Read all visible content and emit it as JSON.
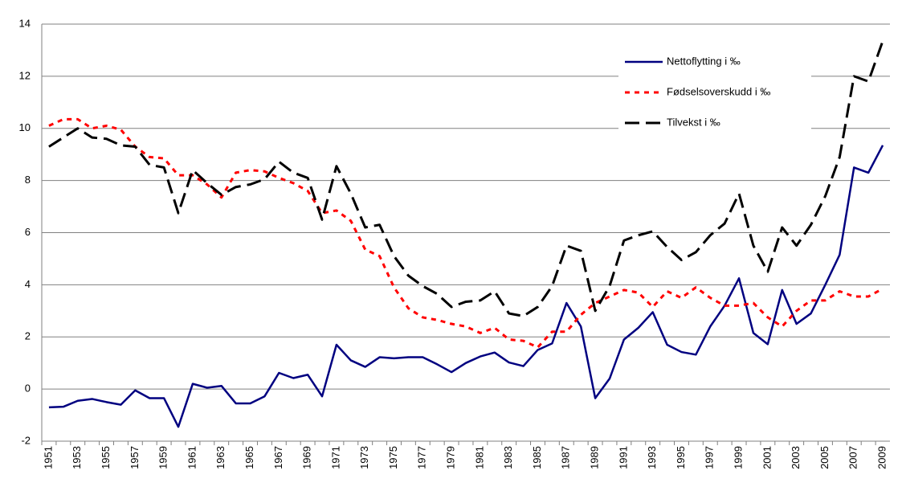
{
  "chart_data": {
    "type": "line",
    "categories": [
      "1951",
      null,
      "1953",
      null,
      "1955",
      null,
      "1957",
      null,
      "1959",
      null,
      "1961",
      null,
      "1963",
      null,
      "1965",
      null,
      "1967",
      null,
      "1969",
      null,
      "1971",
      null,
      "1973",
      null,
      "1975",
      null,
      "1977",
      null,
      "1979",
      null,
      "1981",
      null,
      "1983",
      null,
      "1985",
      null,
      "1987",
      null,
      "1989",
      null,
      "1991",
      null,
      "1993",
      null,
      "1995",
      null,
      "1997",
      null,
      "1999",
      null,
      "2001",
      null,
      "2003",
      null,
      "2005",
      null,
      "2007",
      null,
      "2009"
    ],
    "series": [
      {
        "name": "Nettoflytting i ‰",
        "color": "#000080",
        "dash": "solid",
        "values": [
          -0.7,
          -0.68,
          -0.45,
          -0.38,
          -0.5,
          -0.6,
          -0.05,
          -0.35,
          -0.35,
          -1.45,
          0.2,
          0.05,
          0.12,
          -0.55,
          -0.55,
          -0.28,
          0.62,
          0.42,
          0.55,
          -0.28,
          1.7,
          1.1,
          0.85,
          1.22,
          1.18,
          1.22,
          1.22,
          0.95,
          0.65,
          1.0,
          1.25,
          1.4,
          1.02,
          0.88,
          1.5,
          1.75,
          3.3,
          2.4,
          -0.35,
          0.4,
          1.9,
          2.35,
          2.95,
          1.7,
          1.42,
          1.32,
          2.4,
          3.2,
          4.25,
          2.15,
          1.72,
          3.8,
          2.5,
          2.9,
          4.0,
          5.15,
          8.5,
          8.3,
          9.35
        ]
      },
      {
        "name": "Fødselsoverskudd i ‰",
        "color": "#ff0000",
        "dash": "dotted",
        "values": [
          10.1,
          10.35,
          10.35,
          10.0,
          10.1,
          9.95,
          9.3,
          8.9,
          8.85,
          8.2,
          8.2,
          7.85,
          7.35,
          8.3,
          8.4,
          8.35,
          8.1,
          7.9,
          7.6,
          6.75,
          6.85,
          6.45,
          5.35,
          5.1,
          3.9,
          3.1,
          2.75,
          2.65,
          2.5,
          2.4,
          2.15,
          2.35,
          1.9,
          1.85,
          1.6,
          2.2,
          2.2,
          2.85,
          3.3,
          3.55,
          3.8,
          3.7,
          3.15,
          3.75,
          3.5,
          3.9,
          3.5,
          3.2,
          3.2,
          3.3,
          2.75,
          2.4,
          3.0,
          3.4,
          3.4,
          3.75,
          3.55,
          3.55,
          3.85
        ]
      },
      {
        "name": "Tilvekst i ‰",
        "color": "#000000",
        "dash": "dashed",
        "values": [
          9.3,
          9.65,
          10.0,
          9.65,
          9.6,
          9.35,
          9.3,
          8.6,
          8.5,
          6.75,
          8.4,
          7.9,
          7.45,
          7.75,
          7.85,
          8.05,
          8.72,
          8.3,
          8.1,
          6.5,
          8.55,
          7.5,
          6.2,
          6.3,
          5.1,
          4.35,
          3.95,
          3.65,
          3.15,
          3.35,
          3.4,
          3.75,
          2.9,
          2.8,
          3.15,
          3.95,
          5.5,
          5.3,
          3.0,
          3.95,
          5.7,
          5.9,
          6.05,
          5.45,
          4.95,
          5.25,
          5.9,
          6.35,
          7.5,
          5.5,
          4.5,
          6.2,
          5.5,
          6.3,
          7.4,
          8.9,
          12.0,
          11.8,
          13.35
        ]
      }
    ],
    "ylim": [
      -2,
      14
    ],
    "yticks": [
      -2,
      0,
      2,
      4,
      6,
      8,
      10,
      12,
      14
    ],
    "grid": true,
    "legend": "top-right"
  }
}
